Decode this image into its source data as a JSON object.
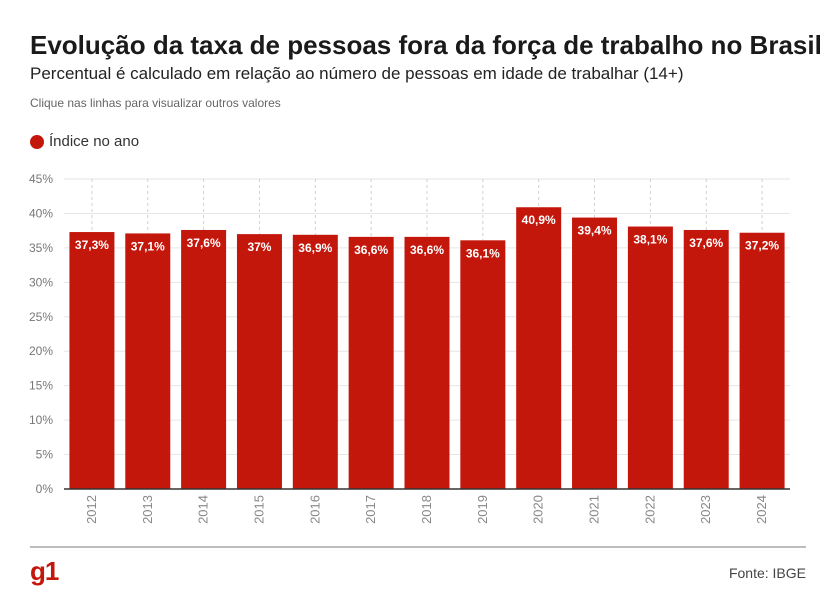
{
  "header": {
    "title": "Evolução da taxa de pessoas fora da força de trabalho no Brasil",
    "subtitle": "Percentual é calculado em relação ao número de pessoas em idade de trabalhar (14+)",
    "note": "Clique nas linhas para visualizar outros valores"
  },
  "legend": {
    "label": "Índice no ano",
    "color": "#c4170c"
  },
  "footer": {
    "logo": "g1",
    "source": "Fonte: IBGE"
  },
  "chart_data": {
    "type": "bar",
    "categories": [
      "2012",
      "2013",
      "2014",
      "2015",
      "2016",
      "2017",
      "2018",
      "2019",
      "2020",
      "2021",
      "2022",
      "2023",
      "2024"
    ],
    "series": [
      {
        "name": "Índice no ano",
        "values": [
          37.3,
          37.1,
          37.6,
          37.0,
          36.9,
          36.6,
          36.6,
          36.1,
          40.9,
          39.4,
          38.1,
          37.6,
          37.2
        ],
        "labels": [
          "37,3%",
          "37,1%",
          "37,6%",
          "37%",
          "36,9%",
          "36,6%",
          "36,6%",
          "36,1%",
          "40,9%",
          "39,4%",
          "38,1%",
          "37,6%",
          "37,2%"
        ]
      }
    ],
    "yticks": [
      0,
      5,
      10,
      15,
      20,
      25,
      30,
      35,
      40,
      45
    ],
    "ytick_labels": [
      "0%",
      "5%",
      "10%",
      "15%",
      "20%",
      "25%",
      "30%",
      "35%",
      "40%",
      "45%"
    ],
    "ylim": [
      0,
      45
    ],
    "grid": true,
    "legend_position": "top-left",
    "bar_color": "#c4170c"
  }
}
